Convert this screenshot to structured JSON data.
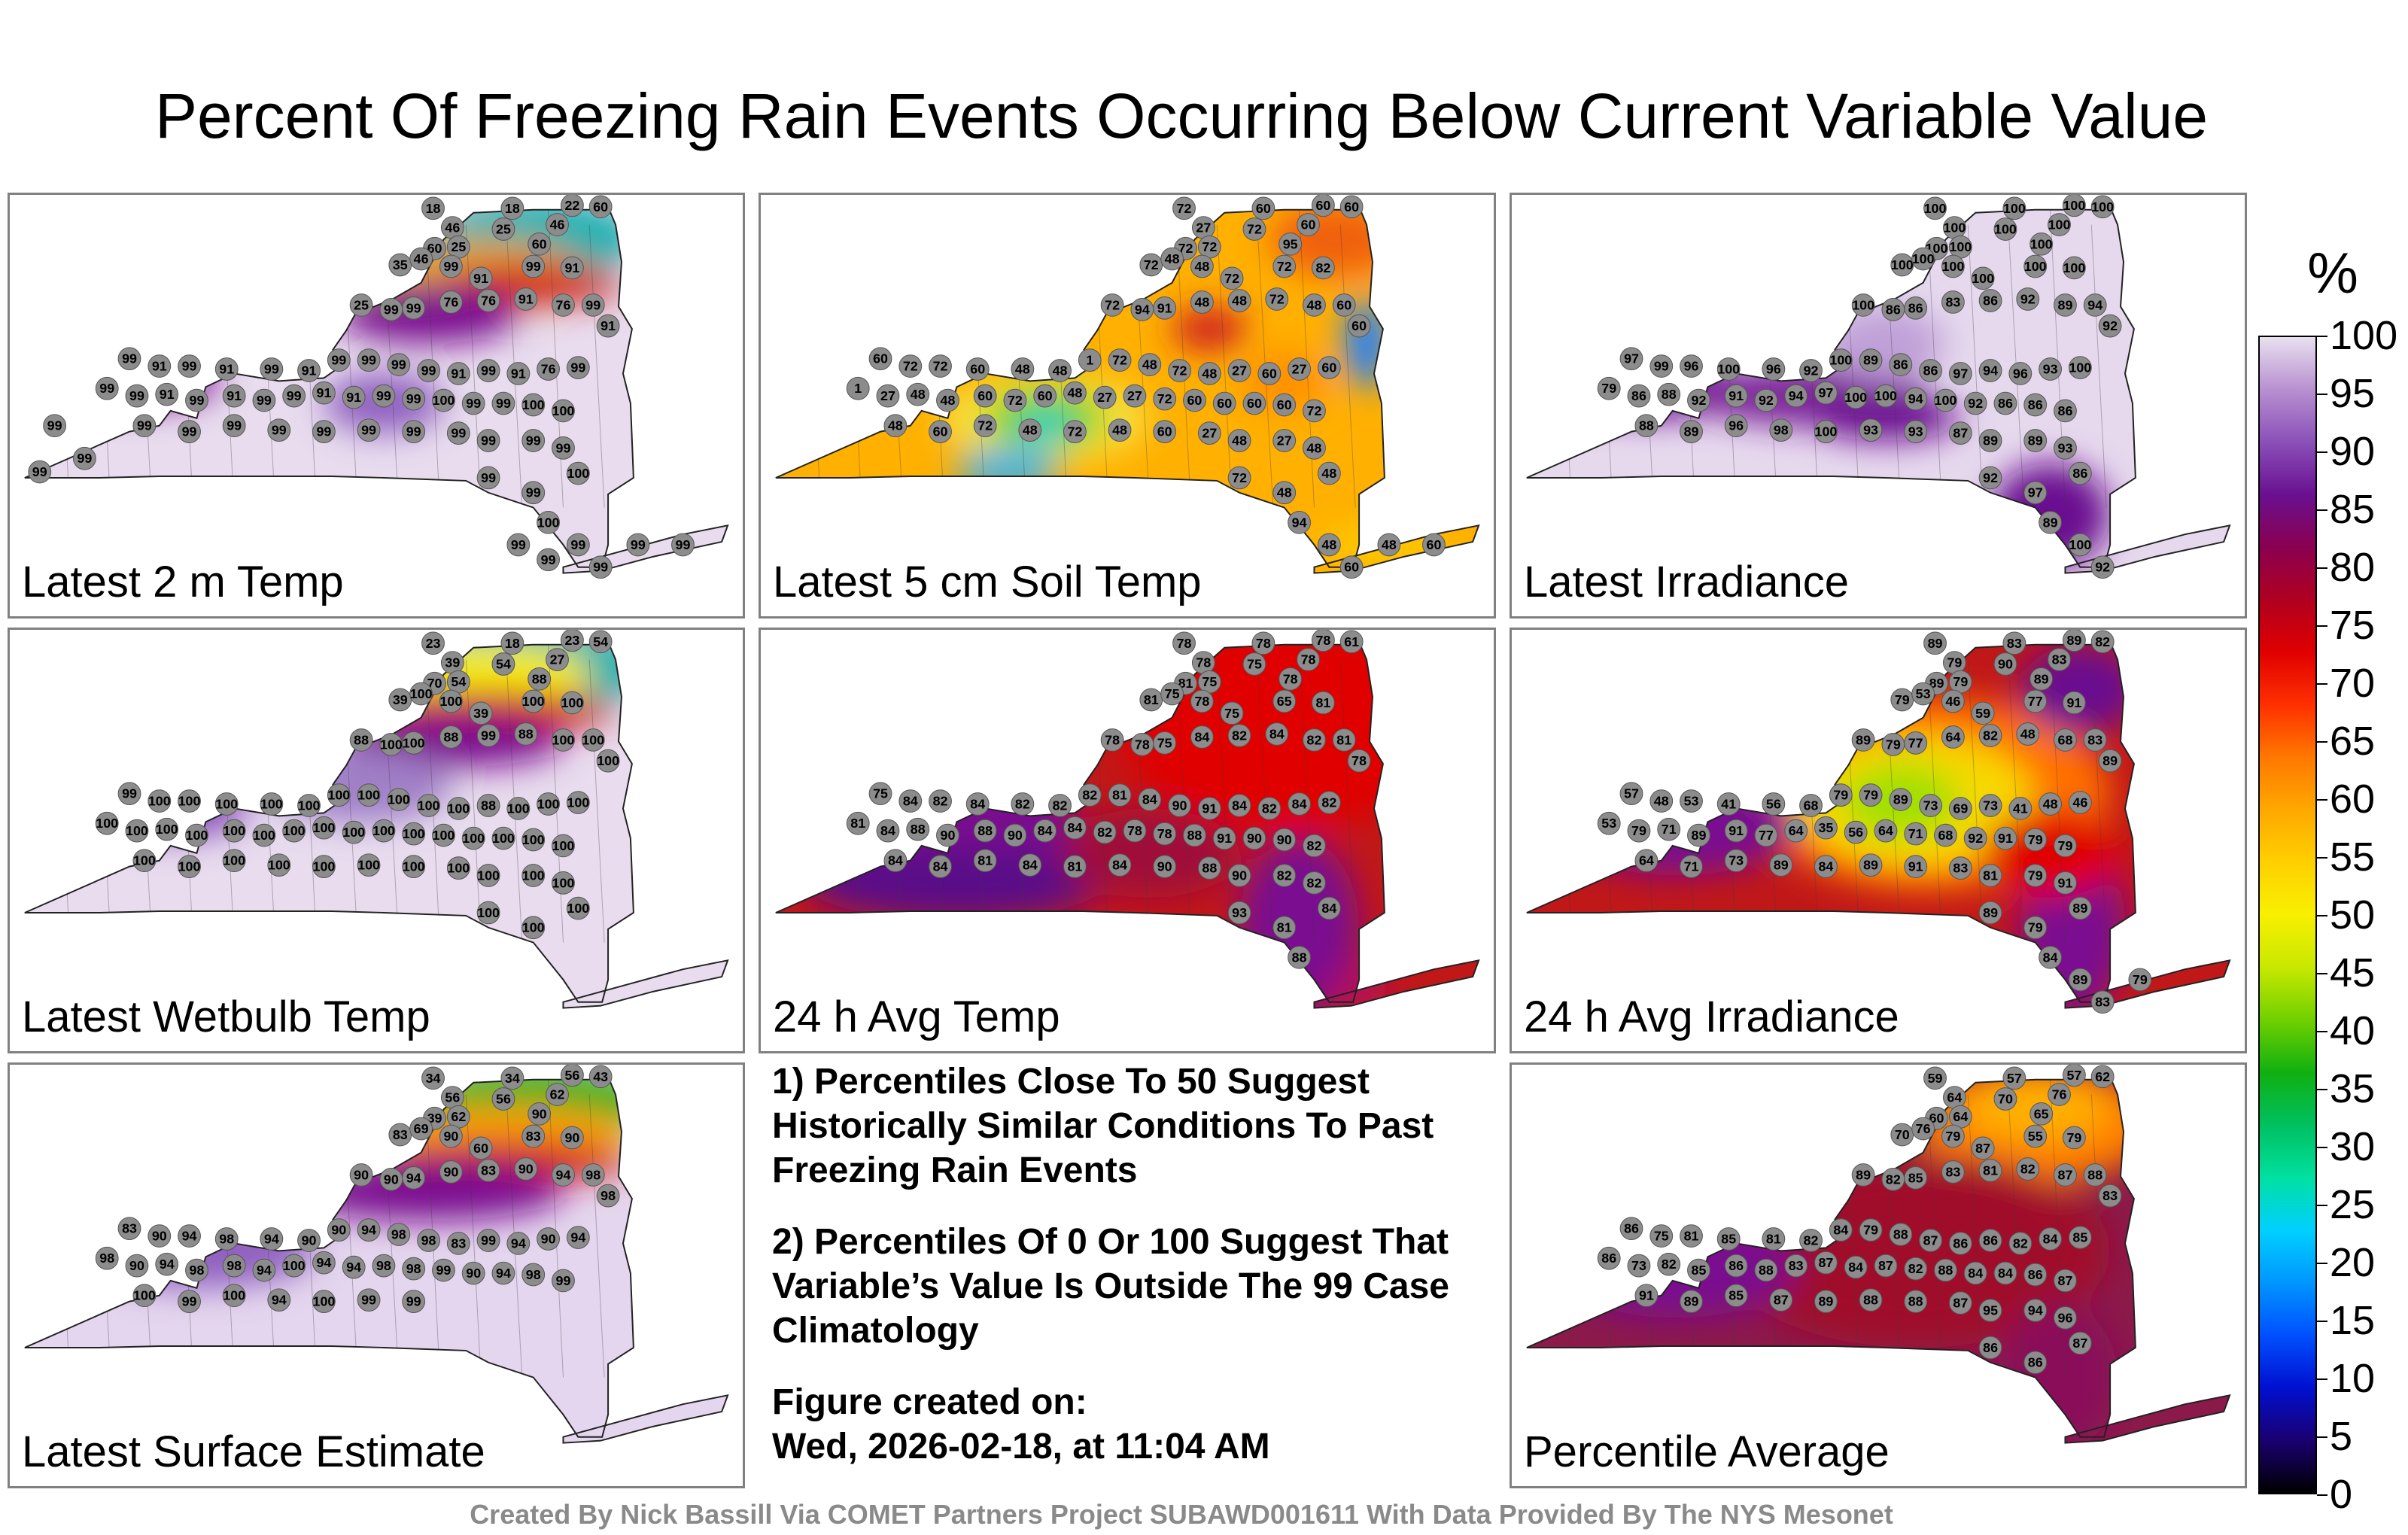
{
  "title": "Percent Of Freezing Rain Events Occurring Below Current Variable Value",
  "colorbar": {
    "unit": "%",
    "ticks": [
      "100",
      "95",
      "90",
      "85",
      "80",
      "75",
      "70",
      "65",
      "60",
      "55",
      "50",
      "45",
      "40",
      "35",
      "30",
      "25",
      "20",
      "15",
      "10",
      "5",
      "0"
    ]
  },
  "panels": [
    {
      "label": "Latest 2 m Temp",
      "region_fill": "#e8dcee",
      "stations": [
        "18",
        "18",
        "22",
        "60",
        "46",
        "25",
        "46",
        "60",
        "25",
        "60",
        "35",
        "46",
        "99",
        "91",
        "99",
        "91",
        "25",
        "99",
        "99",
        "76",
        "76",
        "91",
        "76",
        "99",
        "91",
        "99",
        "91",
        "99",
        "91",
        "99",
        "91",
        "99",
        "99",
        "99",
        "99",
        "91",
        "99",
        "91",
        "76",
        "99",
        "99",
        "99",
        "91",
        "99",
        "91",
        "99",
        "99",
        "91",
        "91",
        "99",
        "99",
        "100",
        "99",
        "99",
        "100",
        "100",
        "99",
        "99",
        "99",
        "99",
        "99",
        "99",
        "99",
        "99",
        "99",
        "99",
        "99",
        "100",
        "99",
        "99",
        "100",
        "99",
        "99",
        "99",
        "99",
        "99",
        "99",
        "99",
        "99",
        "99"
      ]
    },
    {
      "label": "Latest 5 cm Soil Temp",
      "region_fill": "#ffb000",
      "stations": [
        "72",
        "60",
        "60",
        "60",
        "27",
        "72",
        "60",
        "72",
        "72",
        "95",
        "72",
        "48",
        "48",
        "72",
        "72",
        "82",
        "72",
        "94",
        "91",
        "48",
        "48",
        "72",
        "48",
        "60",
        "60",
        "60",
        "72",
        "72",
        "60",
        "48",
        "48",
        "1",
        "72",
        "48",
        "72",
        "48",
        "27",
        "60",
        "27",
        "60",
        "1",
        "27",
        "48",
        "48",
        "60",
        "72",
        "60",
        "48",
        "27",
        "27",
        "72",
        "60",
        "60",
        "60",
        "60",
        "72",
        "48",
        "60",
        "72",
        "48",
        "72",
        "48",
        "60",
        "27",
        "48",
        "27",
        "48",
        "48",
        "72",
        "48",
        "94",
        "48",
        "60",
        "48",
        "60"
      ]
    },
    {
      "label": "Latest Irradiance",
      "region_fill": "#e6d9ee",
      "stations": [
        "100",
        "100",
        "100",
        "100",
        "100",
        "100",
        "100",
        "100",
        "100",
        "100",
        "100",
        "100",
        "100",
        "100",
        "100",
        "100",
        "100",
        "86",
        "86",
        "83",
        "86",
        "92",
        "89",
        "94",
        "92",
        "97",
        "99",
        "96",
        "100",
        "96",
        "92",
        "100",
        "89",
        "86",
        "86",
        "97",
        "94",
        "96",
        "93",
        "100",
        "79",
        "86",
        "88",
        "92",
        "91",
        "92",
        "94",
        "97",
        "100",
        "100",
        "94",
        "100",
        "92",
        "86",
        "86",
        "86",
        "88",
        "89",
        "96",
        "98",
        "100",
        "93",
        "93",
        "87",
        "89",
        "89",
        "93",
        "86",
        "92",
        "97",
        "89",
        "100",
        "92"
      ]
    },
    {
      "label": "Latest Wetbulb Temp",
      "region_fill": "#e8dcee",
      "stations": [
        "23",
        "18",
        "23",
        "54",
        "39",
        "54",
        "27",
        "70",
        "54",
        "88",
        "39",
        "100",
        "100",
        "39",
        "100",
        "100",
        "88",
        "100",
        "100",
        "88",
        "99",
        "88",
        "100",
        "100",
        "100",
        "99",
        "100",
        "100",
        "100",
        "100",
        "100",
        "100",
        "100",
        "100",
        "100",
        "100",
        "88",
        "100",
        "100",
        "100",
        "100",
        "100",
        "100",
        "100",
        "100",
        "100",
        "100",
        "100",
        "100",
        "100",
        "100",
        "100",
        "100",
        "100",
        "100",
        "100",
        "100",
        "100",
        "100",
        "100",
        "100",
        "100",
        "100",
        "100",
        "100",
        "100",
        "100",
        "100",
        "100",
        "100"
      ]
    },
    {
      "label": "24 h Avg Temp",
      "region_fill": "#c01818",
      "stations": [
        "78",
        "78",
        "78",
        "61",
        "78",
        "75",
        "78",
        "81",
        "75",
        "78",
        "81",
        "75",
        "78",
        "75",
        "65",
        "81",
        "78",
        "78",
        "75",
        "84",
        "82",
        "84",
        "82",
        "81",
        "78",
        "75",
        "84",
        "82",
        "84",
        "82",
        "82",
        "82",
        "81",
        "84",
        "90",
        "91",
        "84",
        "82",
        "84",
        "82",
        "81",
        "84",
        "88",
        "90",
        "88",
        "90",
        "84",
        "84",
        "82",
        "78",
        "78",
        "88",
        "91",
        "90",
        "90",
        "82",
        "84",
        "84",
        "81",
        "84",
        "81",
        "84",
        "90",
        "88",
        "90",
        "82",
        "82",
        "84",
        "93",
        "81",
        "88"
      ]
    },
    {
      "label": "24 h Avg Irradiance",
      "region_fill": "#c01818",
      "stations": [
        "89",
        "83",
        "89",
        "82",
        "79",
        "90",
        "83",
        "89",
        "79",
        "89",
        "79",
        "53",
        "46",
        "59",
        "77",
        "91",
        "89",
        "79",
        "77",
        "64",
        "82",
        "48",
        "68",
        "83",
        "89",
        "57",
        "48",
        "53",
        "41",
        "56",
        "68",
        "79",
        "79",
        "89",
        "73",
        "69",
        "73",
        "41",
        "48",
        "46",
        "53",
        "79",
        "71",
        "89",
        "91",
        "77",
        "64",
        "35",
        "56",
        "64",
        "71",
        "68",
        "92",
        "91",
        "79",
        "79",
        "64",
        "71",
        "73",
        "89",
        "84",
        "89",
        "91",
        "83",
        "81",
        "79",
        "91",
        "89",
        "89",
        "79",
        "84",
        "89",
        "83",
        "79"
      ]
    },
    {
      "label": "Latest Surface Estimate",
      "region_fill": "#e4d6ee",
      "stations": [
        "34",
        "34",
        "56",
        "43",
        "56",
        "56",
        "62",
        "39",
        "62",
        "90",
        "83",
        "69",
        "90",
        "60",
        "83",
        "90",
        "90",
        "90",
        "94",
        "90",
        "83",
        "90",
        "94",
        "98",
        "98",
        "83",
        "90",
        "94",
        "98",
        "94",
        "90",
        "90",
        "94",
        "98",
        "98",
        "83",
        "99",
        "94",
        "90",
        "94",
        "98",
        "90",
        "94",
        "98",
        "98",
        "94",
        "100",
        "94",
        "94",
        "98",
        "98",
        "99",
        "90",
        "94",
        "98",
        "99",
        "100",
        "99",
        "100",
        "94",
        "100",
        "99",
        "99"
      ]
    },
    {
      "label": "Percentile Average",
      "region_fill": "#8b1a4a",
      "stations": [
        "59",
        "57",
        "57",
        "62",
        "64",
        "70",
        "76",
        "60",
        "64",
        "65",
        "70",
        "76",
        "79",
        "87",
        "55",
        "79",
        "89",
        "82",
        "85",
        "83",
        "81",
        "82",
        "87",
        "88",
        "83",
        "86",
        "75",
        "81",
        "85",
        "81",
        "82",
        "84",
        "79",
        "88",
        "87",
        "86",
        "86",
        "82",
        "84",
        "85",
        "86",
        "73",
        "82",
        "85",
        "86",
        "88",
        "83",
        "87",
        "84",
        "87",
        "82",
        "88",
        "84",
        "84",
        "86",
        "87",
        "91",
        "89",
        "85",
        "87",
        "89",
        "88",
        "88",
        "87",
        "95",
        "94",
        "96",
        "87",
        "86",
        "86"
      ]
    }
  ],
  "notes": {
    "note1": "1) Percentiles Close To 50 Suggest Historically Similar Conditions To Past Freezing Rain Events",
    "note2": "2) Percentiles Of 0 Or 100 Suggest That Variable’s Value Is Outside The 99 Case Climatology",
    "created_label": "Figure created on:",
    "created_value": "Wed, 2026-02-18, at 11:04 AM"
  },
  "footer": "Created By Nick Bassill Via COMET Partners Project SUBAWD001611 With Data Provided By The NYS Mesonet",
  "palette": [
    "#000000",
    "#1a0070",
    "#0010d0",
    "#0050ff",
    "#0096ff",
    "#00d0ff",
    "#00e0a0",
    "#00c060",
    "#10b010",
    "#70d000",
    "#c8e800",
    "#f8f000",
    "#ffd000",
    "#ffa800",
    "#ff7800",
    "#ff3000",
    "#e00000",
    "#b00020",
    "#8a0050",
    "#6a1090",
    "#8a50b8",
    "#b890d0",
    "#e8e0f0"
  ]
}
